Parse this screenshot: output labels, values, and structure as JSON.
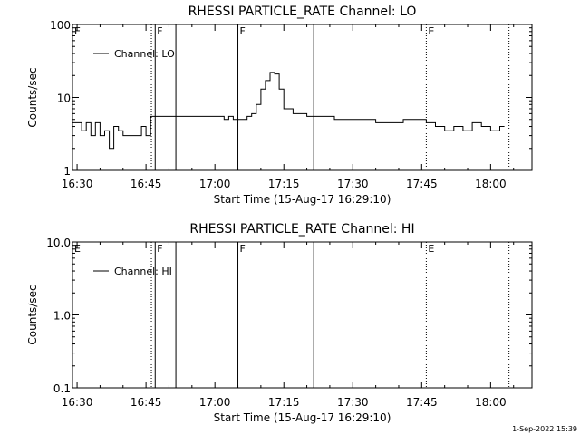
{
  "footer_timestamp": "1-Sep-2022 15:39",
  "chart_data": [
    {
      "type": "line",
      "title": "RHESSI PARTICLE_RATE Channel: LO",
      "xlabel": "Start Time (15-Aug-17 16:29:10)",
      "ylabel": "Counts/sec",
      "yscale": "log",
      "ylim": [
        1,
        100
      ],
      "xlim": [
        "16:29",
        "18:09"
      ],
      "x_ticks": [
        "16:30",
        "16:45",
        "17:00",
        "17:15",
        "17:30",
        "17:45",
        "18:00"
      ],
      "y_ticks": [
        "1",
        "10",
        "100"
      ],
      "legend": {
        "position": "top-left",
        "entries": [
          "Channel: LO"
        ]
      },
      "markers": [
        {
          "time": "16:46:10",
          "label": "",
          "style": "dotted"
        },
        {
          "time": "16:47:00",
          "label": "F",
          "style": "solid"
        },
        {
          "time": "16:51:30",
          "label": "",
          "style": "solid"
        },
        {
          "time": "17:05:00",
          "label": "F",
          "style": "solid"
        },
        {
          "time": "17:21:30",
          "label": "",
          "style": "solid"
        },
        {
          "time": "17:46:00",
          "label": "E",
          "style": "dotted"
        },
        {
          "time": "18:04:00",
          "label": "",
          "style": "dotted"
        }
      ],
      "corner_labels": [
        {
          "time": "16:29:10",
          "label": "E"
        }
      ],
      "series": [
        {
          "name": "Channel: LO",
          "x": [
            "16:29",
            "16:30",
            "16:31",
            "16:32",
            "16:33",
            "16:34",
            "16:35",
            "16:36",
            "16:37",
            "16:38",
            "16:39",
            "16:40",
            "16:41",
            "16:42",
            "16:43",
            "16:44",
            "16:45",
            "16:46",
            "16:47",
            "16:48",
            "16:49",
            "16:50",
            "16:52",
            "16:55",
            "16:58",
            "17:00",
            "17:01",
            "17:02",
            "17:03",
            "17:04",
            "17:05",
            "17:06",
            "17:07",
            "17:08",
            "17:09",
            "17:10",
            "17:11",
            "17:12",
            "17:13",
            "17:14",
            "17:15",
            "17:17",
            "17:20",
            "17:23",
            "17:26",
            "17:29",
            "17:32",
            "17:35",
            "17:38",
            "17:41",
            "17:44",
            "17:46",
            "17:48",
            "17:50",
            "17:52",
            "17:54",
            "17:56",
            "17:58",
            "18:00",
            "18:02",
            "18:03"
          ],
          "y": [
            4.5,
            4.5,
            3.5,
            4.5,
            3.0,
            4.5,
            3.0,
            3.5,
            2.0,
            4.0,
            3.5,
            3.0,
            3.0,
            3.0,
            3.0,
            4.0,
            3.0,
            5.5,
            5.5,
            5.5,
            5.5,
            5.5,
            5.5,
            5.5,
            5.5,
            5.5,
            5.5,
            5.0,
            5.5,
            5.0,
            5.0,
            5.0,
            5.5,
            6.0,
            8.0,
            13,
            17,
            22,
            21,
            13,
            7.0,
            6.0,
            5.5,
            5.5,
            5.0,
            5.0,
            5.0,
            4.5,
            4.5,
            5.0,
            5.0,
            4.5,
            4.0,
            3.5,
            4.0,
            3.5,
            4.5,
            4.0,
            3.5,
            4.0,
            4.0
          ]
        }
      ]
    },
    {
      "type": "line",
      "title": "RHESSI PARTICLE_RATE Channel: HI",
      "xlabel": "Start Time (15-Aug-17 16:29:10)",
      "ylabel": "Counts/sec",
      "yscale": "log",
      "ylim": [
        0.1,
        10
      ],
      "xlim": [
        "16:29",
        "18:09"
      ],
      "x_ticks": [
        "16:30",
        "16:45",
        "17:00",
        "17:15",
        "17:30",
        "17:45",
        "18:00"
      ],
      "y_ticks": [
        "0.1",
        "1.0",
        "10.0"
      ],
      "legend": {
        "position": "top-left",
        "entries": [
          "Channel: HI"
        ]
      },
      "markers": [
        {
          "time": "16:46:10",
          "label": "",
          "style": "dotted"
        },
        {
          "time": "16:47:00",
          "label": "F",
          "style": "solid"
        },
        {
          "time": "16:51:30",
          "label": "",
          "style": "solid"
        },
        {
          "time": "17:05:00",
          "label": "F",
          "style": "solid"
        },
        {
          "time": "17:21:30",
          "label": "",
          "style": "solid"
        },
        {
          "time": "17:46:00",
          "label": "E",
          "style": "dotted"
        },
        {
          "time": "18:04:00",
          "label": "",
          "style": "dotted"
        }
      ],
      "corner_labels": [
        {
          "time": "16:29:10",
          "label": "E"
        }
      ],
      "series": [
        {
          "name": "Channel: HI",
          "x": [],
          "y": []
        }
      ]
    }
  ]
}
